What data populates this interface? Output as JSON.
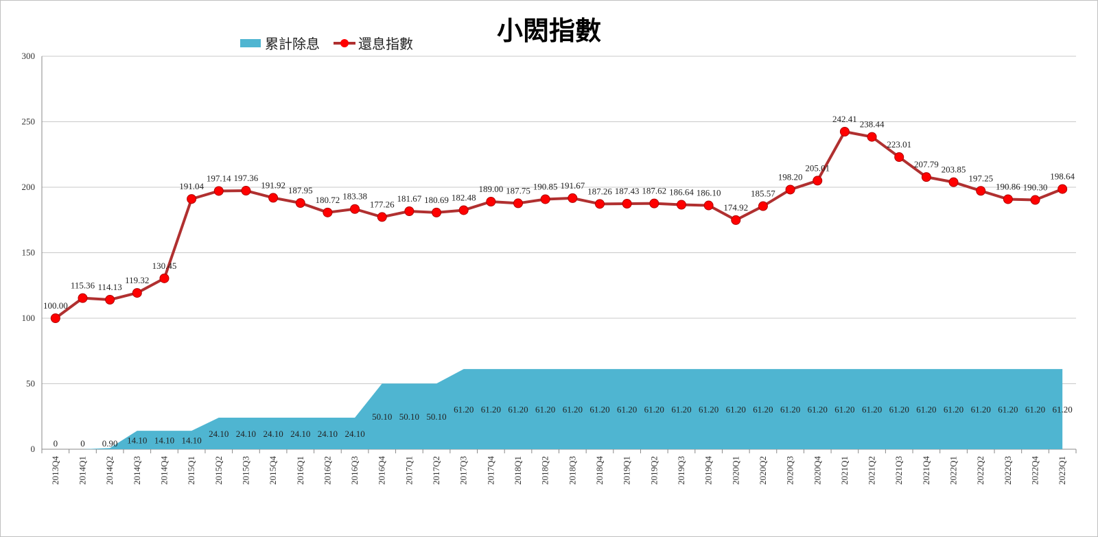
{
  "chart_data": {
    "type": "line",
    "title": "小閎指數",
    "xlabel": "",
    "ylabel": "",
    "ylim": [
      0,
      300
    ],
    "yticks": [
      0,
      50,
      100,
      150,
      200,
      250,
      300
    ],
    "grid": true,
    "legend_position": "top-left",
    "categories": [
      "2013Q4",
      "2014Q1",
      "2014Q2",
      "2014Q3",
      "2014Q4",
      "2015Q1",
      "2015Q2",
      "2015Q3",
      "2015Q4",
      "2016Q1",
      "2016Q2",
      "2016Q3",
      "2016Q4",
      "2017Q1",
      "2017Q2",
      "2017Q3",
      "2017Q4",
      "2018Q1",
      "2018Q2",
      "2018Q3",
      "2018Q4",
      "2019Q1",
      "2019Q2",
      "2019Q3",
      "2019Q4",
      "2020Q1",
      "2020Q2",
      "2020Q3",
      "2020Q4",
      "2021Q1",
      "2021Q2",
      "2021Q3",
      "2021Q4",
      "2022Q1",
      "2022Q2",
      "2022Q3",
      "2022Q4",
      "2023Q1"
    ],
    "series": [
      {
        "name": "累計除息",
        "type": "area",
        "color": "#4fb5d1",
        "values": [
          0,
          0,
          0.9,
          14.1,
          14.1,
          14.1,
          24.1,
          24.1,
          24.1,
          24.1,
          24.1,
          24.1,
          50.1,
          50.1,
          50.1,
          61.2,
          61.2,
          61.2,
          61.2,
          61.2,
          61.2,
          61.2,
          61.2,
          61.2,
          61.2,
          61.2,
          61.2,
          61.2,
          61.2,
          61.2,
          61.2,
          61.2,
          61.2,
          61.2,
          61.2,
          61.2,
          61.2,
          61.2
        ],
        "labels": [
          "0",
          "0",
          "0.90",
          "14.10",
          "14.10",
          "14.10",
          "24.10",
          "24.10",
          "24.10",
          "24.10",
          "24.10",
          "24.10",
          "50.10",
          "50.10",
          "50.10",
          "61.20",
          "61.20",
          "61.20",
          "61.20",
          "61.20",
          "61.20",
          "61.20",
          "61.20",
          "61.20",
          "61.20",
          "61.20",
          "61.20",
          "61.20",
          "61.20",
          "61.20",
          "61.20",
          "61.20",
          "61.20",
          "61.20",
          "61.20",
          "61.20",
          "61.20",
          "61.20"
        ]
      },
      {
        "name": "還息指數",
        "type": "line",
        "color": "#b03030",
        "marker_color": "#ff0000",
        "values": [
          100.0,
          115.36,
          114.13,
          119.32,
          130.45,
          191.04,
          197.14,
          197.36,
          191.92,
          187.95,
          180.72,
          183.38,
          177.26,
          181.67,
          180.69,
          182.48,
          189.0,
          187.75,
          190.85,
          191.67,
          187.26,
          187.43,
          187.62,
          186.64,
          186.1,
          174.92,
          185.57,
          198.2,
          205.01,
          242.41,
          238.44,
          223.01,
          207.79,
          203.85,
          197.25,
          190.86,
          190.3,
          198.64
        ],
        "labels": [
          "100.00",
          "115.36",
          "114.13",
          "119.32",
          "130.45",
          "191.04",
          "197.14",
          "197.36",
          "191.92",
          "187.95",
          "180.72",
          "183.38",
          "177.26",
          "181.67",
          "180.69",
          "182.48",
          "189.00",
          "187.75",
          "190.85",
          "191.67",
          "187.26",
          "187.43",
          "187.62",
          "186.64",
          "186.10",
          "174.92",
          "185.57",
          "198.20",
          "205.01",
          "242.41",
          "238.44",
          "223.01",
          "207.79",
          "203.85",
          "197.25",
          "190.86",
          "190.30",
          "198.64"
        ]
      }
    ]
  }
}
